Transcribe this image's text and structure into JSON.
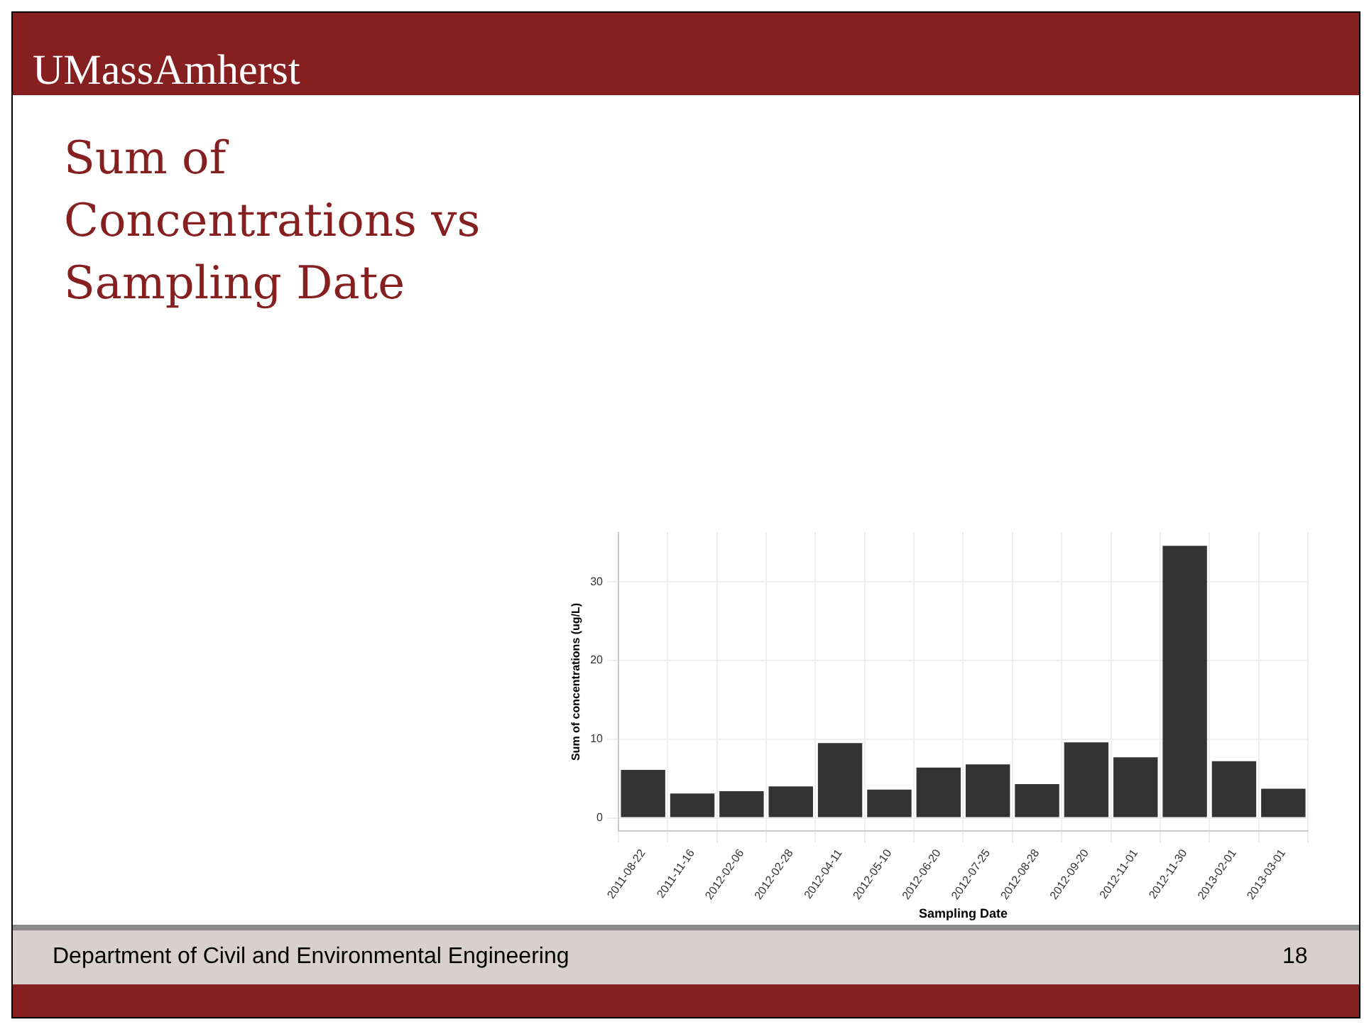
{
  "chart_data": {
    "type": "bar",
    "title": "Sum of Concentrations vs Sampling Date",
    "xlabel": "Sampling Date",
    "ylabel": "Sum of concentrations (ug/L)",
    "categories": [
      "2011-08-22",
      "2011-11-16",
      "2012-02-06",
      "2012-02-28",
      "2012-04-11",
      "2012-05-10",
      "2012-06-20",
      "2012-07-25",
      "2012-08-28",
      "2012-09-20",
      "2012-11-01",
      "2012-11-30",
      "2013-02-01",
      "2013-03-01"
    ],
    "values": [
      6.1,
      3.1,
      3.4,
      4.0,
      9.5,
      3.6,
      6.4,
      6.8,
      4.3,
      9.6,
      7.7,
      34.6,
      7.2,
      3.7
    ],
    "color": "#333333",
    "ylim": [
      -1.7,
      36.3
    ],
    "yticks": [
      0,
      10,
      20,
      30
    ],
    "grid": true,
    "annotations": [
      "UMassAmherst",
      "Department of Civil and Environmental Engineering",
      "18"
    ]
  }
}
